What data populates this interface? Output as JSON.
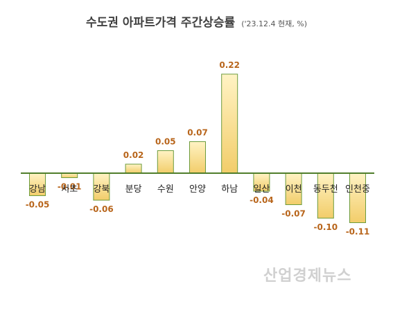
{
  "chart_data": {
    "type": "bar",
    "title": "수도권 아파트가격 주간상승률",
    "subtitle": "('23.12.4 현재, %)",
    "categories": [
      "강남",
      "서초",
      "강북",
      "분당",
      "수원",
      "안양",
      "하남",
      "일산",
      "이천",
      "동두천",
      "인천중"
    ],
    "values": [
      -0.05,
      -0.01,
      -0.06,
      0.02,
      0.05,
      0.07,
      0.22,
      -0.04,
      -0.07,
      -0.1,
      -0.11
    ],
    "value_labels": [
      "-0.05",
      "-0.01",
      "-0.06",
      "0.02",
      "0.05",
      "0.07",
      "0.22",
      "-0.04",
      "-0.07",
      "-0.10",
      "-0.11"
    ],
    "xlabel": "",
    "ylabel": "",
    "grid": false,
    "colors": {
      "bar_fill_top": "#fff3c4",
      "bar_fill_bottom": "#f2cd6a",
      "bar_stroke": "#6c9b3c",
      "baseline": "#4f7d2a",
      "value_label": "#b8651b",
      "category_label": "#222222"
    }
  },
  "watermark": "산업경제뉴스"
}
